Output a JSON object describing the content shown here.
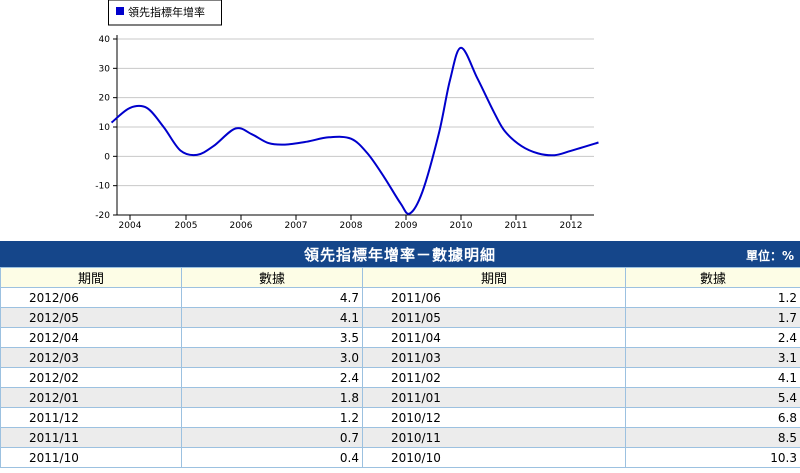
{
  "chart_data": {
    "type": "line",
    "legend": {
      "label": "領先指標年增率",
      "position": "top-left",
      "color": "#0000cc"
    },
    "x_ticks": [
      "2004",
      "2005",
      "2006",
      "2007",
      "2008",
      "2009",
      "2010",
      "2011",
      "2012"
    ],
    "y_ticks": [
      "40",
      "30",
      "20",
      "10",
      "0",
      "-10",
      "-20"
    ],
    "ylim": [
      -20,
      40
    ],
    "grid": "horizontal",
    "series": [
      {
        "name": "領先指標年增率",
        "color": "#0000cc",
        "x": [
          2003.67,
          2004.0,
          2004.3,
          2004.6,
          2004.9,
          2005.2,
          2005.5,
          2005.9,
          2006.2,
          2006.5,
          2006.8,
          2007.2,
          2007.6,
          2008.0,
          2008.3,
          2008.6,
          2008.9,
          2009.07,
          2009.3,
          2009.6,
          2009.8,
          2010.0,
          2010.3,
          2010.6,
          2010.8,
          2011.1,
          2011.4,
          2011.7,
          2012.0,
          2012.5
        ],
        "y": [
          11.5,
          16.5,
          16.5,
          10,
          2,
          0.5,
          3.5,
          9.5,
          7.5,
          4.5,
          4,
          5,
          6.5,
          6,
          1,
          -7,
          -16,
          -19.5,
          -12,
          8,
          26,
          37,
          26.5,
          15,
          8.5,
          3.5,
          1,
          0.4,
          1.9,
          4.7
        ]
      }
    ]
  },
  "table": {
    "title": "領先指標年增率－數據明細",
    "unit": "單位：%",
    "headers": [
      "期間",
      "數據",
      "期間",
      "數據"
    ],
    "rows": [
      [
        "2012/06",
        "4.7",
        "2011/06",
        "1.2"
      ],
      [
        "2012/05",
        "4.1",
        "2011/05",
        "1.7"
      ],
      [
        "2012/04",
        "3.5",
        "2011/04",
        "2.4"
      ],
      [
        "2012/03",
        "3.0",
        "2011/03",
        "3.1"
      ],
      [
        "2012/02",
        "2.4",
        "2011/02",
        "4.1"
      ],
      [
        "2012/01",
        "1.8",
        "2011/01",
        "5.4"
      ],
      [
        "2011/12",
        "1.2",
        "2010/12",
        "6.8"
      ],
      [
        "2011/11",
        "0.7",
        "2010/11",
        "8.5"
      ],
      [
        "2011/10",
        "0.4",
        "2010/10",
        "10.3"
      ]
    ]
  }
}
